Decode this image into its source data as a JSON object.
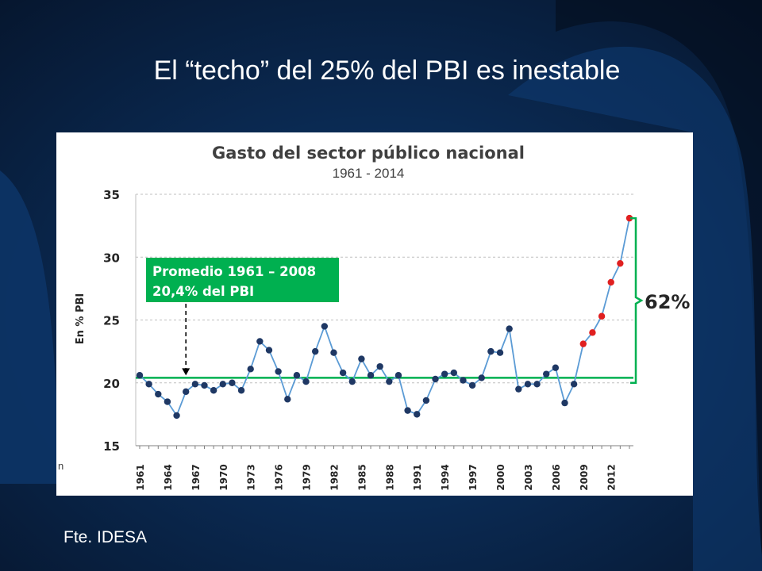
{
  "slide": {
    "title": "El “techo” del 25% del PBI es inestable",
    "source": "Fte. IDESA"
  },
  "colors": {
    "background": "#0c2a52",
    "line": "#5b9bd5",
    "point": "#1f3864",
    "highlight_point": "#e02020",
    "average_line": "#00b050",
    "callout_fill": "#00b050"
  },
  "chart_data": {
    "type": "line",
    "title": "Gasto del sector público nacional",
    "subtitle": "1961 - 2014",
    "ylabel": "En % PBI",
    "xlabel": "",
    "ylim": [
      15,
      35
    ],
    "yticks": [
      15,
      20,
      25,
      30,
      35
    ],
    "xtick_labels": [
      "1961",
      "1964",
      "1967",
      "1970",
      "1973",
      "1976",
      "1979",
      "1982",
      "1985",
      "1988",
      "1991",
      "1994",
      "1997",
      "2000",
      "2003",
      "2006",
      "2009",
      "2012"
    ],
    "grid": "horizontal-dashed",
    "x": [
      1961,
      1962,
      1963,
      1964,
      1965,
      1966,
      1967,
      1968,
      1969,
      1970,
      1971,
      1972,
      1973,
      1974,
      1975,
      1976,
      1977,
      1978,
      1979,
      1980,
      1981,
      1982,
      1983,
      1984,
      1985,
      1986,
      1987,
      1988,
      1989,
      1990,
      1991,
      1992,
      1993,
      1994,
      1995,
      1996,
      1997,
      1998,
      1999,
      2000,
      2001,
      2002,
      2003,
      2004,
      2005,
      2006,
      2007,
      2008,
      2009,
      2010,
      2011,
      2012,
      2013,
      2014
    ],
    "values": [
      20.6,
      19.9,
      19.1,
      18.5,
      17.4,
      19.3,
      19.9,
      19.8,
      19.4,
      19.9,
      20.0,
      19.4,
      21.1,
      23.3,
      22.6,
      20.9,
      18.7,
      20.6,
      20.1,
      22.5,
      24.5,
      22.4,
      20.8,
      20.1,
      21.9,
      20.6,
      21.3,
      20.1,
      20.6,
      17.8,
      17.5,
      18.6,
      20.3,
      20.7,
      20.8,
      20.2,
      19.8,
      20.4,
      22.5,
      22.4,
      24.3,
      19.5,
      19.9,
      19.9,
      20.7,
      21.2,
      18.4,
      19.9,
      23.1,
      24.0,
      25.3,
      28.0,
      29.5,
      33.1
    ],
    "highlight_from_index": 48,
    "average": {
      "value": 20.4,
      "label_line1": "Promedio 1961 – 2008",
      "label_line2": "20,4% del PBI",
      "arrow_year": 1966
    },
    "bracket": {
      "from": 20.0,
      "to": 33.1,
      "label": "62%"
    },
    "stray_label": "n"
  }
}
